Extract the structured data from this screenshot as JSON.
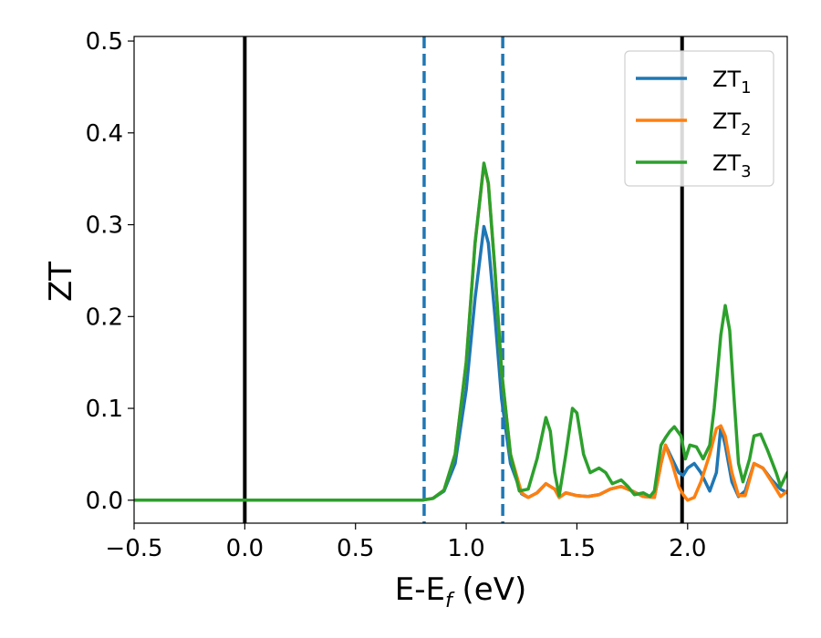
{
  "chart_data": {
    "type": "line",
    "xlabel": "E-E",
    "xlabel_sub": "f",
    "xlabel_unit": " (eV)",
    "ylabel": "ZT",
    "xlim": [
      -0.5,
      2.45
    ],
    "ylim": [
      -0.025,
      0.505
    ],
    "x_ticks": [
      -0.5,
      0.0,
      0.5,
      1.0,
      1.5,
      2.0
    ],
    "x_tick_labels": [
      "−0.5",
      "0.0",
      "0.5",
      "1.0",
      "1.5",
      "2.0"
    ],
    "y_ticks": [
      0.0,
      0.1,
      0.2,
      0.3,
      0.4,
      0.5
    ],
    "y_tick_labels": [
      "0.0",
      "0.1",
      "0.2",
      "0.3",
      "0.4",
      "0.5"
    ],
    "grid": false,
    "legend_position": "top-right",
    "vertical_lines": [
      {
        "x": 0.0,
        "style": "solid",
        "color": "#000000"
      },
      {
        "x": 1.975,
        "style": "solid",
        "color": "#000000"
      },
      {
        "x": 0.81,
        "style": "dashed",
        "color": "#1f77b4"
      },
      {
        "x": 1.165,
        "style": "dashed",
        "color": "#1f77b4"
      }
    ],
    "series": [
      {
        "name": "ZT",
        "name_sub": "1",
        "color": "#1f77b4",
        "points": [
          [
            -0.5,
            0.0
          ],
          [
            0.8,
            0.0
          ],
          [
            0.85,
            0.002
          ],
          [
            0.9,
            0.01
          ],
          [
            0.95,
            0.04
          ],
          [
            1.0,
            0.12
          ],
          [
            1.04,
            0.22
          ],
          [
            1.08,
            0.298
          ],
          [
            1.1,
            0.28
          ],
          [
            1.13,
            0.2
          ],
          [
            1.16,
            0.11
          ],
          [
            1.2,
            0.04
          ],
          [
            1.25,
            0.007
          ],
          [
            1.28,
            0.003
          ],
          [
            1.32,
            0.008
          ],
          [
            1.36,
            0.018
          ],
          [
            1.4,
            0.012
          ],
          [
            1.42,
            0.003
          ],
          [
            1.45,
            0.008
          ],
          [
            1.5,
            0.005
          ],
          [
            1.55,
            0.004
          ],
          [
            1.6,
            0.006
          ],
          [
            1.65,
            0.012
          ],
          [
            1.7,
            0.015
          ],
          [
            1.75,
            0.01
          ],
          [
            1.8,
            0.004
          ],
          [
            1.85,
            0.003
          ],
          [
            1.88,
            0.04
          ],
          [
            1.9,
            0.06
          ],
          [
            1.93,
            0.045
          ],
          [
            1.96,
            0.03
          ],
          [
            1.98,
            0.027
          ],
          [
            2.0,
            0.035
          ],
          [
            2.03,
            0.04
          ],
          [
            2.06,
            0.03
          ],
          [
            2.1,
            0.01
          ],
          [
            2.13,
            0.03
          ],
          [
            2.15,
            0.08
          ],
          [
            2.17,
            0.06
          ],
          [
            2.2,
            0.02
          ],
          [
            2.23,
            0.004
          ],
          [
            2.26,
            0.01
          ],
          [
            2.3,
            0.04
          ],
          [
            2.34,
            0.035
          ],
          [
            2.38,
            0.022
          ],
          [
            2.42,
            0.012
          ],
          [
            2.45,
            0.008
          ]
        ]
      },
      {
        "name": "ZT",
        "name_sub": "2",
        "color": "#ff7f0e",
        "points": [
          [
            -0.5,
            0.0
          ],
          [
            0.8,
            0.0
          ],
          [
            0.85,
            0.002
          ],
          [
            0.9,
            0.011
          ],
          [
            0.95,
            0.05
          ],
          [
            1.0,
            0.15
          ],
          [
            1.04,
            0.28
          ],
          [
            1.08,
            0.366
          ],
          [
            1.1,
            0.345
          ],
          [
            1.13,
            0.25
          ],
          [
            1.16,
            0.14
          ],
          [
            1.2,
            0.05
          ],
          [
            1.25,
            0.008
          ],
          [
            1.28,
            0.003
          ],
          [
            1.32,
            0.008
          ],
          [
            1.36,
            0.018
          ],
          [
            1.4,
            0.012
          ],
          [
            1.42,
            0.003
          ],
          [
            1.45,
            0.008
          ],
          [
            1.5,
            0.005
          ],
          [
            1.55,
            0.004
          ],
          [
            1.6,
            0.006
          ],
          [
            1.65,
            0.012
          ],
          [
            1.7,
            0.015
          ],
          [
            1.75,
            0.01
          ],
          [
            1.8,
            0.004
          ],
          [
            1.85,
            0.003
          ],
          [
            1.88,
            0.04
          ],
          [
            1.9,
            0.06
          ],
          [
            1.93,
            0.04
          ],
          [
            1.96,
            0.015
          ],
          [
            1.98,
            0.006
          ],
          [
            2.0,
            0.0
          ],
          [
            2.03,
            0.003
          ],
          [
            2.06,
            0.02
          ],
          [
            2.1,
            0.05
          ],
          [
            2.13,
            0.078
          ],
          [
            2.15,
            0.081
          ],
          [
            2.17,
            0.07
          ],
          [
            2.2,
            0.03
          ],
          [
            2.23,
            0.005
          ],
          [
            2.26,
            0.005
          ],
          [
            2.3,
            0.04
          ],
          [
            2.34,
            0.035
          ],
          [
            2.38,
            0.02
          ],
          [
            2.42,
            0.004
          ],
          [
            2.45,
            0.01
          ]
        ]
      },
      {
        "name": "ZT",
        "name_sub": "3",
        "color": "#2ca02c",
        "points": [
          [
            -0.5,
            0.0
          ],
          [
            0.8,
            0.0
          ],
          [
            0.85,
            0.002
          ],
          [
            0.9,
            0.011
          ],
          [
            0.95,
            0.05
          ],
          [
            1.0,
            0.15
          ],
          [
            1.04,
            0.28
          ],
          [
            1.08,
            0.367
          ],
          [
            1.1,
            0.345
          ],
          [
            1.13,
            0.25
          ],
          [
            1.16,
            0.14
          ],
          [
            1.2,
            0.05
          ],
          [
            1.24,
            0.01
          ],
          [
            1.28,
            0.012
          ],
          [
            1.32,
            0.045
          ],
          [
            1.36,
            0.09
          ],
          [
            1.38,
            0.075
          ],
          [
            1.4,
            0.03
          ],
          [
            1.42,
            0.005
          ],
          [
            1.45,
            0.05
          ],
          [
            1.48,
            0.1
          ],
          [
            1.5,
            0.095
          ],
          [
            1.53,
            0.05
          ],
          [
            1.56,
            0.03
          ],
          [
            1.6,
            0.035
          ],
          [
            1.63,
            0.03
          ],
          [
            1.66,
            0.018
          ],
          [
            1.7,
            0.022
          ],
          [
            1.73,
            0.015
          ],
          [
            1.76,
            0.006
          ],
          [
            1.8,
            0.008
          ],
          [
            1.83,
            0.004
          ],
          [
            1.85,
            0.01
          ],
          [
            1.88,
            0.06
          ],
          [
            1.9,
            0.068
          ],
          [
            1.92,
            0.075
          ],
          [
            1.94,
            0.08
          ],
          [
            1.97,
            0.07
          ],
          [
            1.99,
            0.045
          ],
          [
            2.01,
            0.06
          ],
          [
            2.04,
            0.058
          ],
          [
            2.07,
            0.045
          ],
          [
            2.1,
            0.06
          ],
          [
            2.12,
            0.1
          ],
          [
            2.15,
            0.18
          ],
          [
            2.17,
            0.212
          ],
          [
            2.19,
            0.185
          ],
          [
            2.21,
            0.11
          ],
          [
            2.23,
            0.04
          ],
          [
            2.25,
            0.02
          ],
          [
            2.28,
            0.045
          ],
          [
            2.3,
            0.07
          ],
          [
            2.33,
            0.072
          ],
          [
            2.36,
            0.055
          ],
          [
            2.4,
            0.03
          ],
          [
            2.42,
            0.015
          ],
          [
            2.45,
            0.03
          ]
        ]
      }
    ]
  }
}
